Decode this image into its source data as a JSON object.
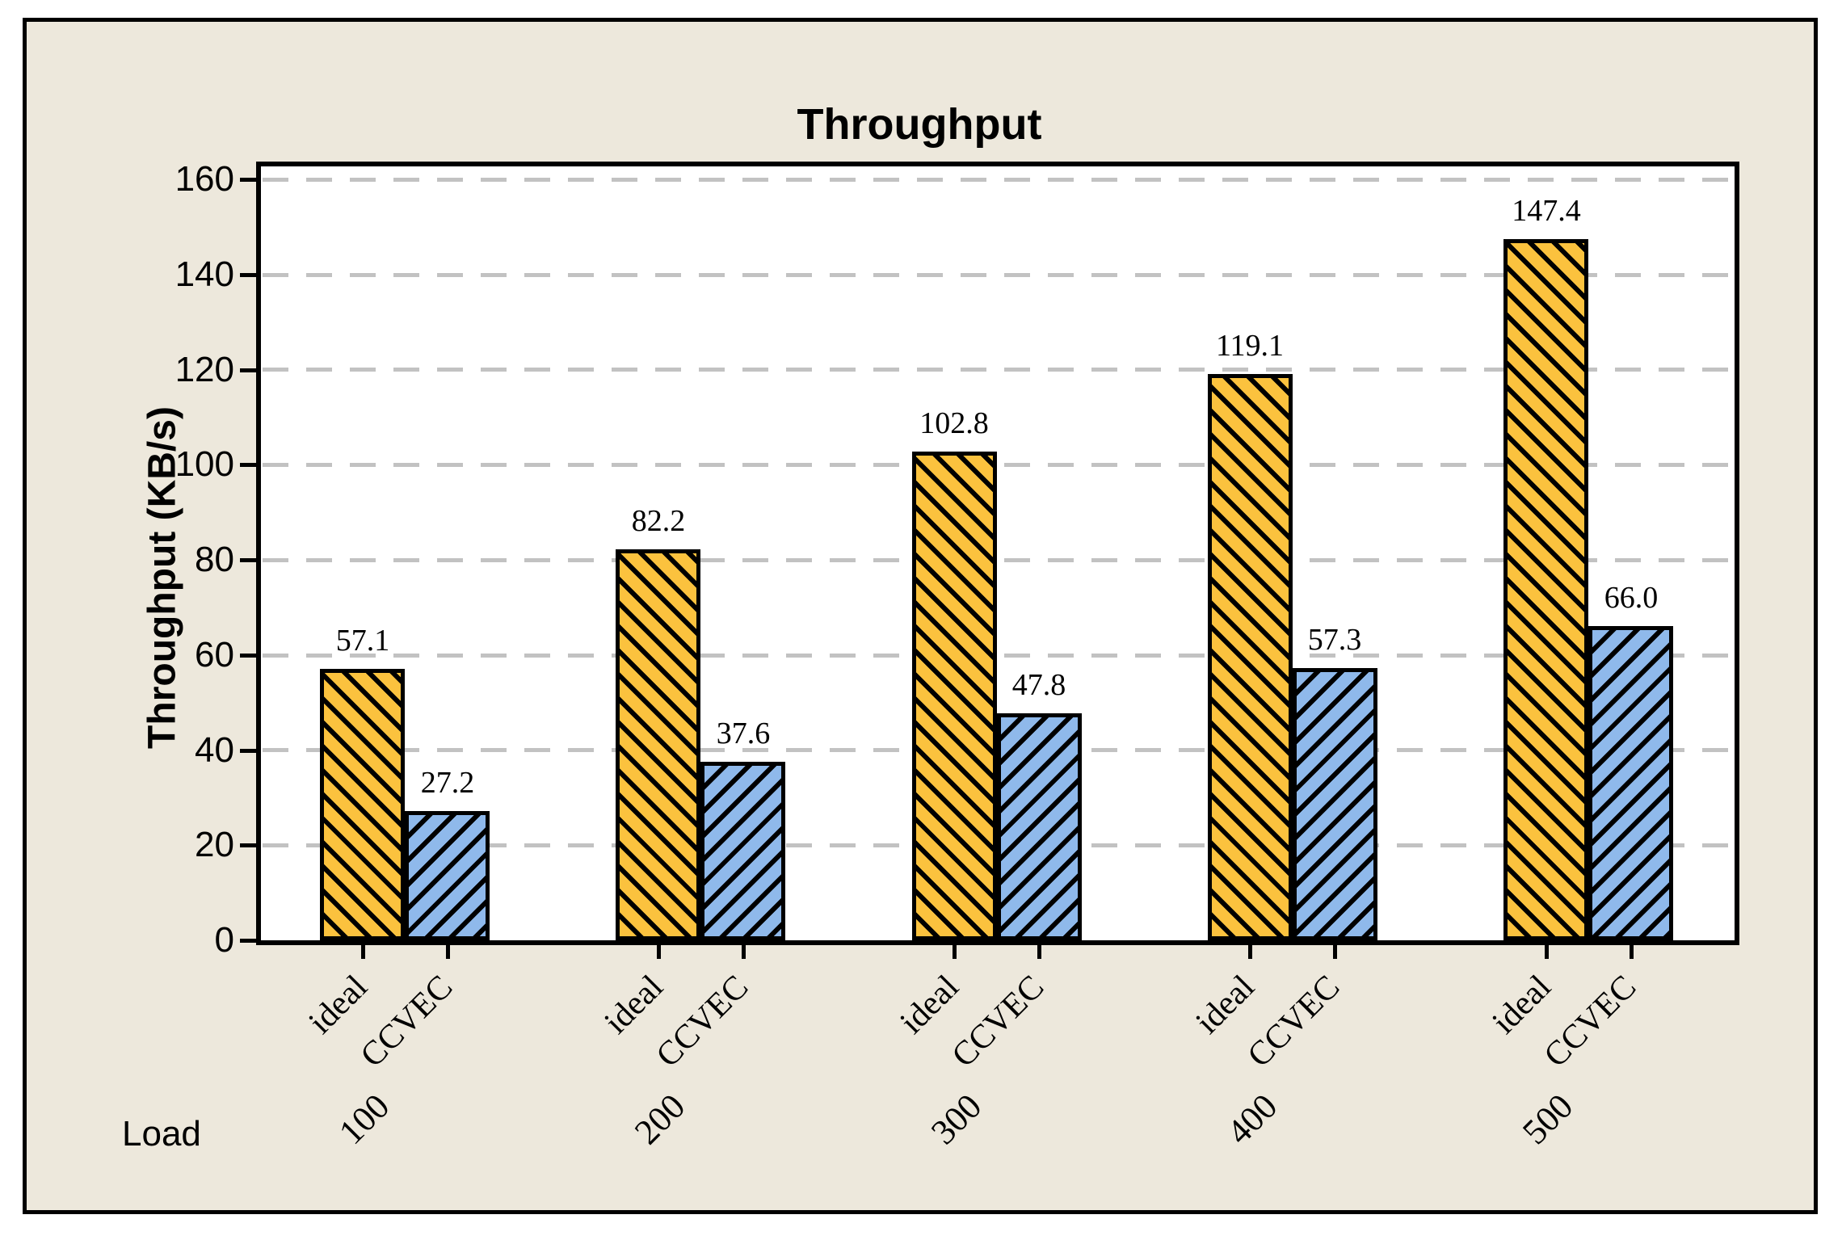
{
  "title": "Throughput",
  "y_axis": {
    "label": "Throughput (KB/s)",
    "ticks": [
      0,
      20,
      40,
      60,
      80,
      100,
      120,
      140,
      160
    ]
  },
  "x_axis": {
    "row_label": "Load",
    "group_labels": [
      "100",
      "200",
      "300",
      "400",
      "500"
    ],
    "bar_labels": [
      "ideal",
      "CCVEC"
    ]
  },
  "colors": {
    "panel_background": "#EDE8DC",
    "plot_background": "#FFFFFF",
    "ideal_bar": "#FBC23E",
    "ccvec_bar": "#8FB9EB",
    "hatch": "#000000",
    "gridline": "#C2C2C2",
    "axis": "#000000"
  },
  "chart_data": {
    "type": "bar",
    "title": "Throughput",
    "xlabel": "Load",
    "ylabel": "Throughput (KB/s)",
    "ylim": [
      0,
      160
    ],
    "ytick_step": 20,
    "grid": "horizontal dashed",
    "legend_position": "none",
    "bar_value_labels": true,
    "categories": [
      "100",
      "200",
      "300",
      "400",
      "500"
    ],
    "series": [
      {
        "name": "ideal",
        "color": "#FBC23E",
        "hatch": "\\",
        "values": [
          57.1,
          82.2,
          102.8,
          119.1,
          147.4
        ]
      },
      {
        "name": "CCVEC",
        "color": "#8FB9EB",
        "hatch": "/",
        "values": [
          27.2,
          37.6,
          47.8,
          57.3,
          66.0
        ]
      }
    ]
  }
}
